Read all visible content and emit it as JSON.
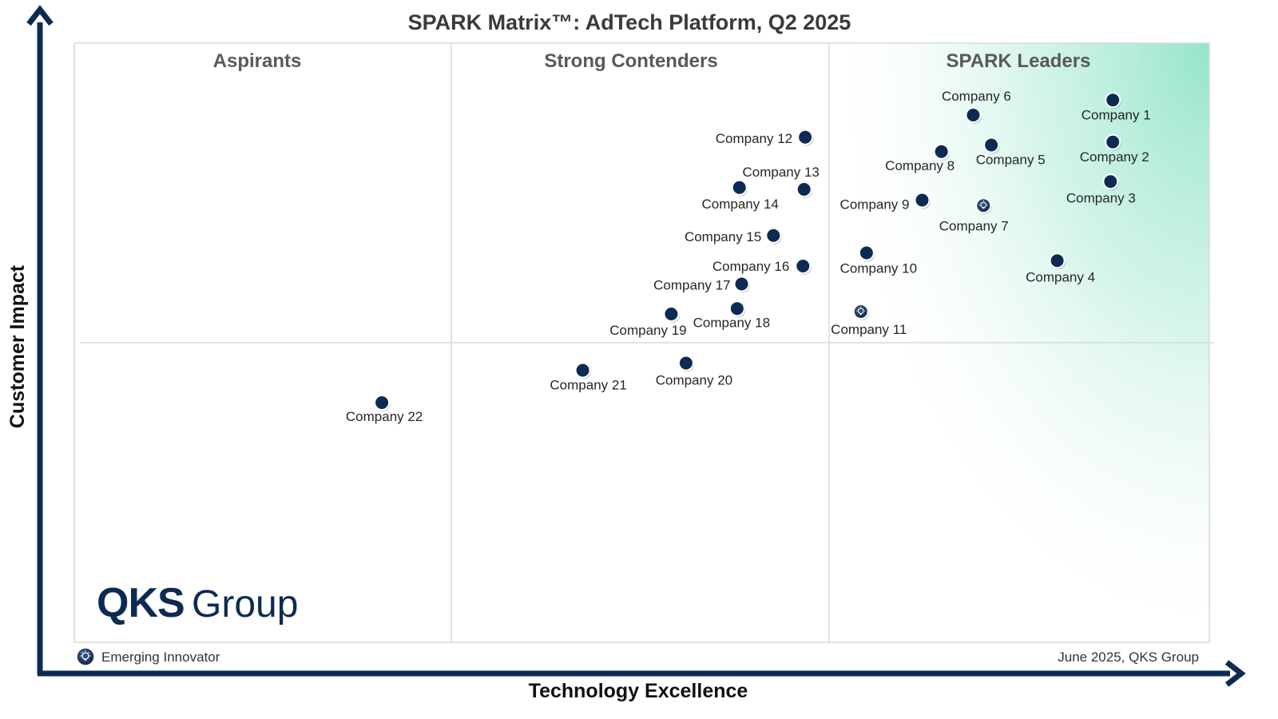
{
  "chart_data": {
    "type": "scatter",
    "title": "SPARK Matrix™: AdTech Platform, Q2 2025",
    "xlabel": "Technology Excellence",
    "ylabel": "Customer Impact",
    "quadrants": [
      "Aspirants",
      "Strong Contenders",
      "SPARK Leaders"
    ],
    "points": [
      {
        "name": "Company 1",
        "x": 91.5,
        "y": 90.5,
        "emerging": false
      },
      {
        "name": "Company 2",
        "x": 91.5,
        "y": 83.5,
        "emerging": false
      },
      {
        "name": "Company 3",
        "x": 91.3,
        "y": 76.9,
        "emerging": false
      },
      {
        "name": "Company 4",
        "x": 86.6,
        "y": 63.7,
        "emerging": false
      },
      {
        "name": "Company 5",
        "x": 80.8,
        "y": 83.0,
        "emerging": false
      },
      {
        "name": "Company 6",
        "x": 79.2,
        "y": 88.0,
        "emerging": false
      },
      {
        "name": "Company 7",
        "x": 80.1,
        "y": 72.9,
        "emerging": true
      },
      {
        "name": "Company 8",
        "x": 76.4,
        "y": 81.9,
        "emerging": false
      },
      {
        "name": "Company 9",
        "x": 74.7,
        "y": 73.8,
        "emerging": false
      },
      {
        "name": "Company 10",
        "x": 69.8,
        "y": 65.0,
        "emerging": false
      },
      {
        "name": "Company 11",
        "x": 69.3,
        "y": 55.2,
        "emerging": true
      },
      {
        "name": "Company 12",
        "x": 64.4,
        "y": 84.3,
        "emerging": false
      },
      {
        "name": "Company 13",
        "x": 64.3,
        "y": 75.6,
        "emerging": false
      },
      {
        "name": "Company 14",
        "x": 58.6,
        "y": 75.9,
        "emerging": false
      },
      {
        "name": "Company 15",
        "x": 61.6,
        "y": 67.9,
        "emerging": false
      },
      {
        "name": "Company 16",
        "x": 64.2,
        "y": 62.8,
        "emerging": false
      },
      {
        "name": "Company 17",
        "x": 58.8,
        "y": 59.8,
        "emerging": false
      },
      {
        "name": "Company 18",
        "x": 58.4,
        "y": 55.7,
        "emerging": false
      },
      {
        "name": "Company 19",
        "x": 52.6,
        "y": 54.8,
        "emerging": false
      },
      {
        "name": "Company 20",
        "x": 53.9,
        "y": 46.6,
        "emerging": false
      },
      {
        "name": "Company 21",
        "x": 44.8,
        "y": 45.4,
        "emerging": false
      },
      {
        "name": "Company 22",
        "x": 27.1,
        "y": 40.0,
        "emerging": false
      }
    ],
    "xlim": [
      0,
      100
    ],
    "ylim": [
      0,
      100
    ],
    "legend": {
      "label": "Emerging Innovator",
      "placement": "bottom-left"
    }
  },
  "footer": {
    "date": "June 2025, QKS Group"
  },
  "logo": {
    "part1": "QKS",
    "part2": "Group"
  },
  "colors": {
    "dot": "#0d2b52",
    "axis": "#0d2b52",
    "leader_gradient": "#7fe0c3",
    "gridline": "#d6d6d6"
  }
}
